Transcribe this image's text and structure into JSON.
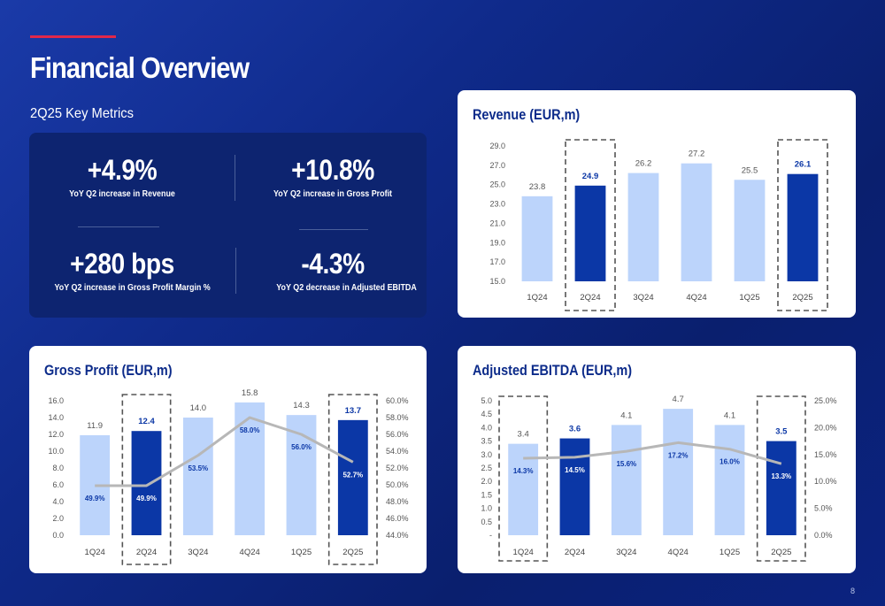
{
  "header": {
    "title": "Financial Overview",
    "subtitle": "2Q25 Key Metrics",
    "page_number": "8"
  },
  "colors": {
    "light_bar": "#bcd4fb",
    "dark_bar": "#0b37a6",
    "line": "#b7b7b7",
    "title": "#0c2b8a",
    "accent": "#e0284a"
  },
  "metrics": [
    {
      "value": "+4.9%",
      "label": "YoY Q2 increase in Revenue"
    },
    {
      "value": "+10.8%",
      "label": "YoY Q2 increase in Gross Profit"
    },
    {
      "value": "+280 bps",
      "label": "YoY Q2 increase in Gross Profit Margin %"
    },
    {
      "value": "-4.3%",
      "label": "YoY Q2 decrease in Adjusted EBITDA"
    }
  ],
  "chart_data": [
    {
      "type": "bar",
      "title": "Revenue (EUR,m)",
      "categories": [
        "1Q24",
        "2Q24",
        "3Q24",
        "4Q24",
        "1Q25",
        "2Q25"
      ],
      "values": [
        23.8,
        24.9,
        26.2,
        27.2,
        25.5,
        26.1
      ],
      "value_labels": [
        "23.8",
        "24.9",
        "26.2",
        "27.2",
        "25.5",
        "26.1"
      ],
      "highlighted": [
        1,
        5
      ],
      "ylim": [
        15,
        29
      ],
      "yticks": [
        "15.0",
        "17.0",
        "19.0",
        "21.0",
        "23.0",
        "25.0",
        "27.0",
        "29.0"
      ]
    },
    {
      "type": "bar",
      "title": "Gross Profit (EUR,m)",
      "categories": [
        "1Q24",
        "2Q24",
        "3Q24",
        "4Q24",
        "1Q25",
        "2Q25"
      ],
      "values": [
        11.9,
        12.4,
        14.0,
        15.8,
        14.3,
        13.7
      ],
      "value_labels": [
        "11.9",
        "12.4",
        "14.0",
        "15.8",
        "14.3",
        "13.7"
      ],
      "line_values": [
        49.9,
        49.9,
        53.5,
        58.0,
        56.0,
        52.7
      ],
      "line_labels": [
        "49.9%",
        "49.9%",
        "53.5%",
        "58.0%",
        "56.0%",
        "52.7%"
      ],
      "highlighted": [
        1,
        5
      ],
      "ylim": [
        0,
        16
      ],
      "yticks": [
        "0.0",
        "2.0",
        "4.0",
        "6.0",
        "8.0",
        "10.0",
        "12.0",
        "14.0",
        "16.0"
      ],
      "y2lim": [
        44,
        60
      ],
      "y2ticks": [
        "44.0%",
        "46.0%",
        "48.0%",
        "50.0%",
        "52.0%",
        "54.0%",
        "56.0%",
        "58.0%",
        "60.0%"
      ]
    },
    {
      "type": "bar",
      "title": "Adjusted EBITDA (EUR,m)",
      "categories": [
        "1Q24",
        "2Q24",
        "3Q24",
        "4Q24",
        "1Q25",
        "2Q25"
      ],
      "values": [
        3.4,
        3.6,
        4.1,
        4.7,
        4.1,
        3.5
      ],
      "value_labels": [
        "3.4",
        "3.6",
        "4.1",
        "4.7",
        "4.1",
        "3.5"
      ],
      "line_values": [
        14.3,
        14.5,
        15.6,
        17.2,
        16.0,
        13.3
      ],
      "line_labels": [
        "14.3%",
        "14.5%",
        "15.6%",
        "17.2%",
        "16.0%",
        "13.3%"
      ],
      "highlighted": [
        0,
        5
      ],
      "ylim": [
        0,
        5
      ],
      "yticks": [
        "-",
        "0.5",
        "1.0",
        "1.5",
        "2.0",
        "2.5",
        "3.0",
        "3.5",
        "4.0",
        "4.5",
        "5.0"
      ],
      "y2lim": [
        0,
        25
      ],
      "y2ticks": [
        "0.0%",
        "5.0%",
        "10.0%",
        "15.0%",
        "20.0%",
        "25.0%"
      ]
    }
  ]
}
